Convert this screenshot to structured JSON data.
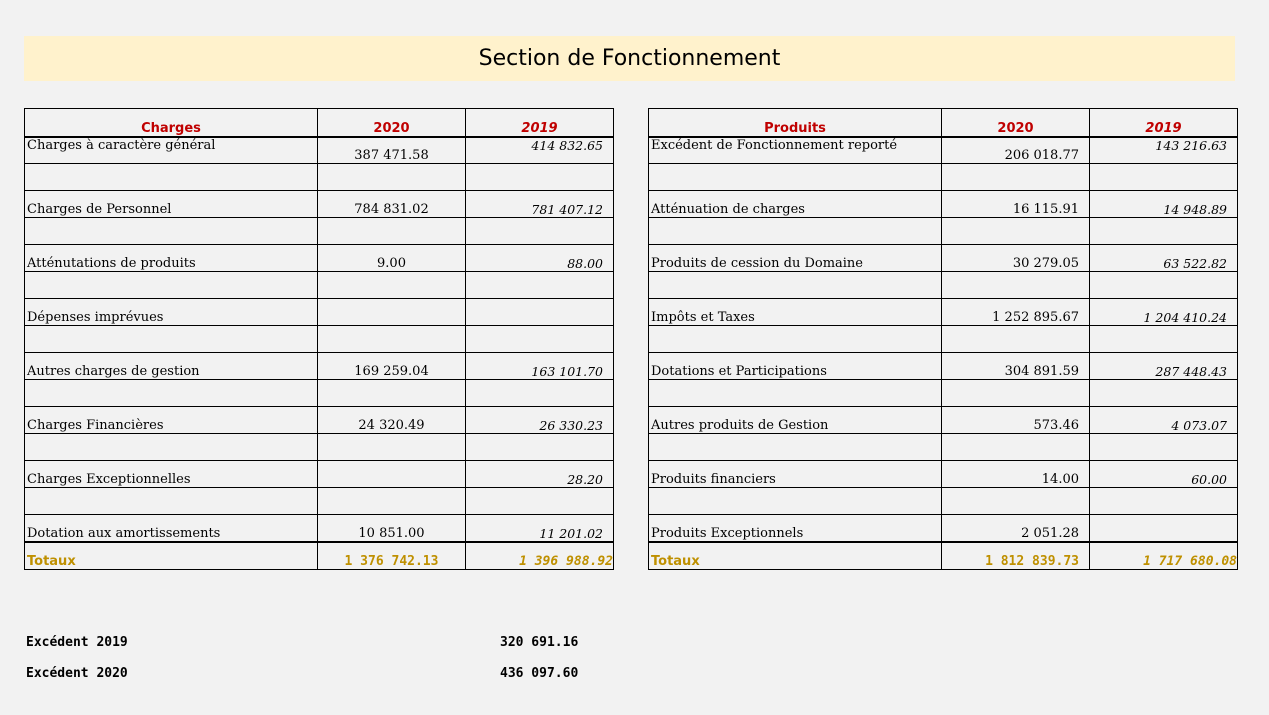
{
  "title": "Section de Fonctionnement",
  "charges": {
    "headers": [
      "Charges",
      "2020",
      "2019"
    ],
    "rows": [
      {
        "label": "Charges à caractère général",
        "v2020": "387 471.58",
        "v2019": "414 832.65"
      },
      {
        "label": "",
        "v2020": "",
        "v2019": ""
      },
      {
        "label": "Charges de Personnel",
        "v2020": "784 831.02",
        "v2019": "781 407.12"
      },
      {
        "label": "",
        "v2020": "",
        "v2019": ""
      },
      {
        "label": "Atténutations de produits",
        "v2020": "9.00",
        "v2019": "88.00"
      },
      {
        "label": "",
        "v2020": "",
        "v2019": ""
      },
      {
        "label": "Dépenses imprévues",
        "v2020": "",
        "v2019": ""
      },
      {
        "label": "",
        "v2020": "",
        "v2019": ""
      },
      {
        "label": "Autres charges de gestion",
        "v2020": "169 259.04",
        "v2019": "163 101.70"
      },
      {
        "label": "",
        "v2020": "",
        "v2019": ""
      },
      {
        "label": "Charges Financières",
        "v2020": "24 320.49",
        "v2019": "26 330.23"
      },
      {
        "label": "",
        "v2020": "",
        "v2019": ""
      },
      {
        "label": "Charges Exceptionnelles",
        "v2020": "",
        "v2019": "28.20"
      },
      {
        "label": "",
        "v2020": "",
        "v2019": ""
      },
      {
        "label": "Dotation aux amortissements",
        "v2020": "10 851.00",
        "v2019": "11 201.02"
      }
    ],
    "totals": {
      "label": "Totaux",
      "v2020": "1 376 742.13",
      "v2019": "1 396 988.92"
    }
  },
  "produits": {
    "headers": [
      "Produits",
      "2020",
      "2019"
    ],
    "rows": [
      {
        "label": "Excédent de Fonctionnement reporté",
        "v2020": "206 018.77",
        "v2019": "143 216.63"
      },
      {
        "label": "",
        "v2020": "",
        "v2019": ""
      },
      {
        "label": "Atténuation de charges",
        "v2020": "16 115.91",
        "v2019": "14 948.89"
      },
      {
        "label": "",
        "v2020": "",
        "v2019": ""
      },
      {
        "label": "Produits de cession du Domaine",
        "v2020": "30 279.05",
        "v2019": "63 522.82"
      },
      {
        "label": "",
        "v2020": "",
        "v2019": ""
      },
      {
        "label": "Impôts et Taxes",
        "v2020": "1 252 895.67",
        "v2019": "1 204 410.24"
      },
      {
        "label": "",
        "v2020": "",
        "v2019": ""
      },
      {
        "label": "Dotations et Participations",
        "v2020": "304 891.59",
        "v2019": "287 448.43"
      },
      {
        "label": "",
        "v2020": "",
        "v2019": ""
      },
      {
        "label": "Autres produits de Gestion",
        "v2020": "573.46",
        "v2019": "4 073.07"
      },
      {
        "label": "",
        "v2020": "",
        "v2019": ""
      },
      {
        "label": "Produits financiers",
        "v2020": "14.00",
        "v2019": "60.00"
      },
      {
        "label": "",
        "v2020": "",
        "v2019": ""
      },
      {
        "label": "Produits Exceptionnels",
        "v2020": "2 051.28",
        "v2019": ""
      }
    ],
    "totals": {
      "label": "Totaux",
      "v2020": "1 812 839.73",
      "v2019": "1 717 680.08"
    }
  },
  "excedents": [
    {
      "label": "Excédent 2019",
      "value": "320 691.16"
    },
    {
      "label": "Excédent 2020",
      "value": "436 097.60"
    }
  ]
}
